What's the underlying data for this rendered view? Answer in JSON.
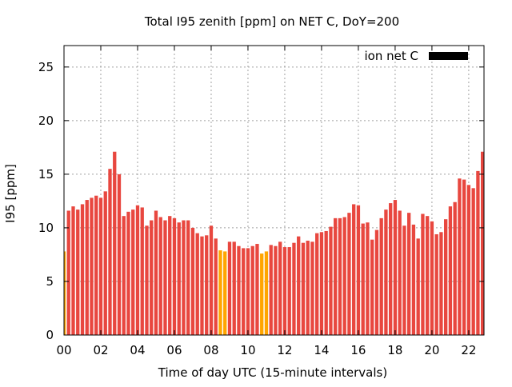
{
  "chart_data": {
    "type": "bar",
    "title": "Total I95 zenith [ppm] on NET C, DoY=200",
    "xlabel": "Time of day UTC (15-minute intervals)",
    "ylabel": "I95 [ppm]",
    "legend": {
      "label": "ion net C",
      "color": "#000000",
      "placement": "top-right"
    },
    "xlim": [
      0,
      22.83
    ],
    "ylim": [
      0,
      27
    ],
    "x_ticks": [
      {
        "value": 0,
        "label": "00"
      },
      {
        "value": 2,
        "label": "02"
      },
      {
        "value": 4,
        "label": "04"
      },
      {
        "value": 6,
        "label": "06"
      },
      {
        "value": 8,
        "label": "08"
      },
      {
        "value": 10,
        "label": "10"
      },
      {
        "value": 12,
        "label": "12"
      },
      {
        "value": 14,
        "label": "14"
      },
      {
        "value": 16,
        "label": "16"
      },
      {
        "value": 18,
        "label": "18"
      },
      {
        "value": 20,
        "label": "20"
      },
      {
        "value": 22,
        "label": "22"
      }
    ],
    "y_ticks": [
      {
        "value": 0,
        "label": "0"
      },
      {
        "value": 5,
        "label": "5"
      },
      {
        "value": 10,
        "label": "10"
      },
      {
        "value": 15,
        "label": "15"
      },
      {
        "value": 20,
        "label": "20"
      },
      {
        "value": 25,
        "label": "25"
      }
    ],
    "grid": true,
    "bar_colors": {
      "default": "#e8473f",
      "highlight": "#ffa500"
    },
    "highlight_indices": [
      0,
      34,
      35,
      43,
      44
    ],
    "interval_hours": 0.25,
    "values": [
      7.8,
      11.6,
      12.0,
      11.7,
      12.2,
      12.6,
      12.8,
      13.0,
      12.8,
      13.4,
      15.5,
      17.1,
      15.0,
      11.1,
      11.5,
      11.7,
      12.1,
      11.9,
      10.2,
      10.7,
      11.6,
      11.0,
      10.7,
      11.1,
      10.9,
      10.5,
      10.7,
      10.7,
      10.0,
      9.5,
      9.2,
      9.3,
      10.2,
      9.0,
      7.9,
      7.8,
      8.7,
      8.7,
      8.3,
      8.1,
      8.1,
      8.3,
      8.5,
      7.6,
      7.8,
      8.4,
      8.3,
      8.7,
      8.2,
      8.2,
      8.6,
      9.2,
      8.6,
      8.8,
      8.7,
      9.5,
      9.6,
      9.7,
      10.1,
      10.9,
      10.9,
      11.0,
      11.4,
      12.2,
      12.1,
      10.4,
      10.5,
      8.9,
      9.8,
      10.9,
      11.7,
      12.3,
      12.6,
      11.6,
      10.2,
      11.4,
      10.3,
      9.0,
      11.3,
      11.1,
      10.6,
      9.4,
      9.6,
      10.8,
      12.0,
      12.4,
      14.6,
      14.5,
      14.0,
      13.7,
      15.3,
      17.1
    ]
  }
}
